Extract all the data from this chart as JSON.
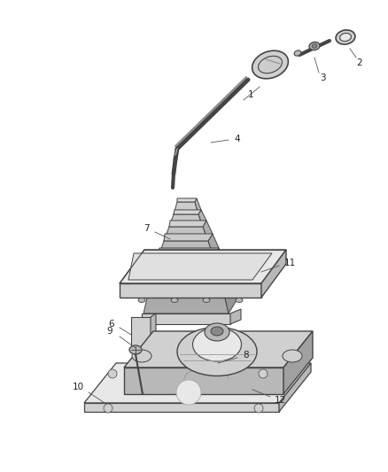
{
  "background_color": "#ffffff",
  "fig_width": 4.39,
  "fig_height": 5.33,
  "dpi": 100,
  "outline_color": "#444444",
  "fill_light": "#e8e8e8",
  "fill_mid": "#d0d0d0",
  "fill_dark": "#b8b8b8",
  "fill_darker": "#a0a0a0",
  "label_color": "#222222",
  "label_fontsize": 7.5,
  "leader_color": "#555555",
  "leader_lw": 0.6
}
